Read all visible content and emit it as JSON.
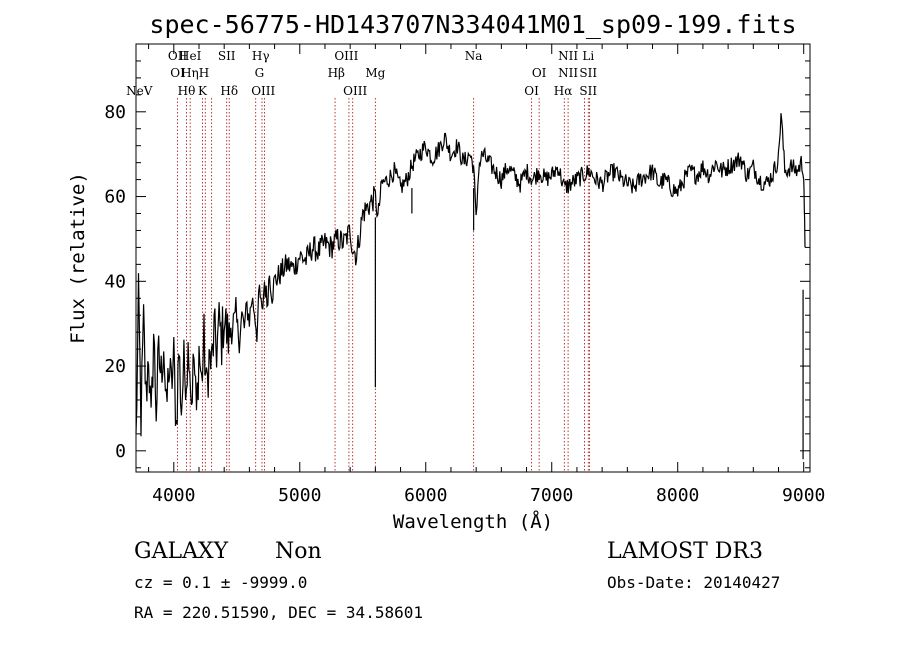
{
  "chart_data": {
    "type": "line",
    "title": "spec-56775-HD143707N334041M01_sp09-199.fits",
    "xlabel": "Wavelength (Å)",
    "ylabel": "Flux (relative)",
    "xlim": [
      3700,
      9050
    ],
    "ylim": [
      -5,
      96
    ],
    "xticks": [
      4000,
      5000,
      6000,
      7000,
      8000,
      9000
    ],
    "yticks": [
      0,
      20,
      40,
      60,
      80
    ],
    "series": [
      {
        "name": "spectrum",
        "x": [
          3700,
          3720,
          3740,
          3760,
          3780,
          3800,
          3820,
          3840,
          3860,
          3880,
          3900,
          3920,
          3940,
          3960,
          3980,
          4000,
          4020,
          4040,
          4060,
          4080,
          4100,
          4120,
          4140,
          4160,
          4180,
          4200,
          4220,
          4240,
          4260,
          4280,
          4300,
          4320,
          4340,
          4360,
          4380,
          4400,
          4420,
          4440,
          4460,
          4480,
          4500,
          4520,
          4540,
          4560,
          4580,
          4600,
          4620,
          4640,
          4660,
          4680,
          4700,
          4720,
          4740,
          4760,
          4780,
          4800,
          4850,
          4900,
          4950,
          5000,
          5050,
          5100,
          5150,
          5200,
          5250,
          5300,
          5350,
          5400,
          5420,
          5450,
          5500,
          5550,
          5600,
          5620,
          5650,
          5700,
          5750,
          5800,
          5850,
          5900,
          5950,
          6000,
          6050,
          6100,
          6150,
          6200,
          6250,
          6300,
          6350,
          6380,
          6400,
          6420,
          6450,
          6500,
          6550,
          6600,
          6650,
          6700,
          6750,
          6800,
          6850,
          6900,
          6950,
          7000,
          7050,
          7100,
          7150,
          7200,
          7250,
          7300,
          7350,
          7400,
          7450,
          7500,
          7550,
          7600,
          7650,
          7700,
          7750,
          7800,
          7850,
          7900,
          7950,
          8000,
          8050,
          8100,
          8150,
          8200,
          8250,
          8300,
          8350,
          8400,
          8450,
          8500,
          8550,
          8600,
          8650,
          8700,
          8750,
          8800,
          8820,
          8850,
          8900,
          8950,
          8980,
          9000,
          9005,
          9010
        ],
        "values": [
          2,
          35,
          8,
          30,
          12,
          24,
          5,
          28,
          10,
          22,
          18,
          26,
          8,
          20,
          15,
          22,
          6,
          24,
          10,
          20,
          18,
          26,
          12,
          22,
          8,
          24,
          16,
          26,
          14,
          22,
          20,
          28,
          24,
          30,
          26,
          32,
          28,
          26,
          32,
          28,
          30,
          26,
          32,
          29,
          34,
          31,
          36,
          33,
          28,
          38,
          32,
          40,
          35,
          42,
          37,
          40,
          42,
          44,
          43,
          46,
          45,
          48,
          47,
          49,
          48,
          50,
          49,
          52,
          48,
          46,
          56,
          58,
          60,
          55,
          63,
          64,
          66,
          62,
          64,
          68,
          70,
          72,
          69,
          71,
          74,
          70,
          72,
          68,
          70,
          67,
          54,
          67,
          70,
          68,
          66,
          64,
          67,
          65,
          63,
          66,
          64,
          66,
          64,
          65,
          67,
          62,
          63,
          64,
          65,
          66,
          64,
          63,
          65,
          66,
          64,
          63,
          62,
          64,
          65,
          66,
          63,
          64,
          62,
          61,
          64,
          66,
          65,
          67,
          65,
          68,
          66,
          67,
          68,
          69,
          65,
          67,
          64,
          63,
          65,
          69,
          80,
          66,
          67,
          66,
          68,
          66,
          58,
          48
        ]
      }
    ],
    "spectral_lines": [
      {
        "label": "NeV",
        "wavelength": 3726,
        "row": 2
      },
      {
        "label": "OII",
        "wavelength": 4030,
        "row": 0
      },
      {
        "label": "OI",
        "wavelength": 4030,
        "row": 1
      },
      {
        "label": "Hθ",
        "wavelength": 4101,
        "row": 2
      },
      {
        "label": "HeI",
        "wavelength": 4130,
        "row": 0
      },
      {
        "label": "Hη",
        "wavelength": 4128,
        "row": 1
      },
      {
        "label": "K",
        "wavelength": 4228,
        "row": 2
      },
      {
        "label": "H",
        "wavelength": 4240,
        "row": 1
      },
      {
        "label": "SII",
        "wavelength": 4420,
        "row": 0
      },
      {
        "label": "Hδ",
        "wavelength": 4440,
        "row": 2
      },
      {
        "label": "Hγ",
        "wavelength": 4690,
        "row": 0
      },
      {
        "label": "G",
        "wavelength": 4680,
        "row": 1
      },
      {
        "label": "OIII",
        "wavelength": 4710,
        "row": 2
      },
      {
        "label": "OIII",
        "wavelength": 5370,
        "row": 0
      },
      {
        "label": "Hβ",
        "wavelength": 5290,
        "row": 1
      },
      {
        "label": "OIII",
        "wavelength": 5440,
        "row": 2
      },
      {
        "label": "Mg",
        "wavelength": 5600,
        "row": 1
      },
      {
        "label": "Na",
        "wavelength": 6380,
        "row": 0
      },
      {
        "label": "OI",
        "wavelength": 6900,
        "row": 1
      },
      {
        "label": "OI",
        "wavelength": 6840,
        "row": 2
      },
      {
        "label": "NII",
        "wavelength": 7130,
        "row": 0
      },
      {
        "label": "NII",
        "wavelength": 7130,
        "row": 1
      },
      {
        "label": "Hα",
        "wavelength": 7090,
        "row": 2
      },
      {
        "label": "Li",
        "wavelength": 7290,
        "row": 0
      },
      {
        "label": "SII",
        "wavelength": 7290,
        "row": 1
      },
      {
        "label": "SII",
        "wavelength": 7290,
        "row": 2
      }
    ],
    "line_markers": [
      4030,
      4101,
      4130,
      4228,
      4250,
      4300,
      4420,
      4440,
      4650,
      4700,
      4720,
      5280,
      5390,
      5420,
      5600,
      6380,
      6840,
      6900,
      7100,
      7130,
      7260,
      7290,
      7300
    ],
    "line_color": "#b22222"
  },
  "info": {
    "object_class": "GALAXY",
    "subclass": "Non",
    "survey": "LAMOST DR3",
    "cz_text": "cz = 0.1 ± -9999.0",
    "obs_date": "Obs-Date: 20140427",
    "coords": "RA = 220.51590, DEC =  34.58601"
  }
}
